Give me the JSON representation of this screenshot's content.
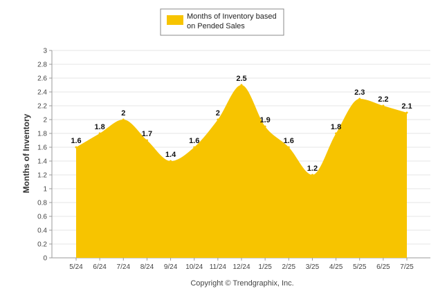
{
  "chart_data": {
    "type": "area",
    "categories": [
      "5/24",
      "6/24",
      "7/24",
      "8/24",
      "9/24",
      "10/24",
      "11/24",
      "12/24",
      "1/25",
      "2/25",
      "3/25",
      "4/25",
      "5/25",
      "6/25",
      "7/25"
    ],
    "series": [
      {
        "name": "Months of Inventory based on Pended Sales",
        "legend_lines": [
          "Months of Inventory based",
          "on Pended Sales"
        ],
        "values": [
          1.6,
          1.8,
          2.0,
          1.7,
          1.4,
          1.6,
          2.0,
          2.5,
          1.9,
          1.6,
          1.2,
          1.8,
          2.3,
          2.2,
          2.1
        ],
        "labels": [
          "1.6",
          "1.8",
          "2",
          "1.7",
          "1.4",
          "1.6",
          "2",
          "2.5",
          "1.9",
          "1.6",
          "1.2",
          "1.8",
          "2.3",
          "2.2",
          "2.1"
        ],
        "color": "#F7C400"
      }
    ],
    "ylabel": "Months of Inventory",
    "xlabel": "",
    "ylim": [
      0,
      3
    ],
    "yticks": [
      "0",
      "0.2",
      "0.4",
      "0.6",
      "0.8",
      "1",
      "1.2",
      "1.4",
      "1.6",
      "1.8",
      "2",
      "2.2",
      "2.4",
      "2.6",
      "2.8",
      "3"
    ],
    "grid": true,
    "legend_position": "top-center",
    "credit": "Copyright © Trendgraphix, Inc."
  }
}
